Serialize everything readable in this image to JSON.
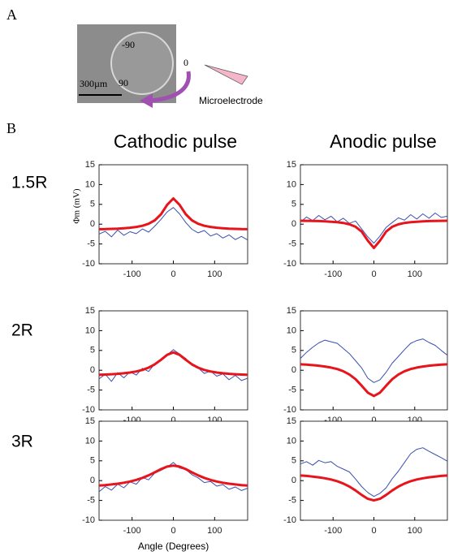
{
  "panel_labels": [
    "A",
    "B"
  ],
  "panel_a": {
    "angle_labels": [
      "-90",
      "0",
      "90"
    ],
    "scale_bar": "300µm",
    "electrode_label": "Microelectrode"
  },
  "column_titles": [
    "Cathodic pulse",
    "Anodic pulse"
  ],
  "row_labels": [
    "1.5R",
    "2R",
    "3R"
  ],
  "chart_data": [
    {
      "type": "line",
      "y_label": "Φm (mV)",
      "x": [
        -180,
        -165,
        -150,
        -135,
        -120,
        -105,
        -90,
        -75,
        -60,
        -45,
        -30,
        -15,
        0,
        15,
        30,
        45,
        60,
        75,
        90,
        105,
        120,
        135,
        150,
        165,
        180
      ],
      "series": [
        {
          "color": "#3a4fb0",
          "width": 1,
          "values": [
            -2.5,
            -1.8,
            -3.2,
            -1.5,
            -2.8,
            -1.9,
            -2.4,
            -1.2,
            -2.0,
            -0.5,
            1.2,
            3.1,
            4.2,
            2.6,
            0.4,
            -1.3,
            -2.2,
            -1.6,
            -3.0,
            -2.4,
            -3.5,
            -2.7,
            -3.9,
            -3.1,
            -4.0
          ]
        },
        {
          "color": "#e8141c",
          "width": 3,
          "values": [
            -1.28,
            -1.24,
            -1.19,
            -1.13,
            -1.03,
            -0.9,
            -0.7,
            -0.4,
            0.1,
            0.96,
            2.5,
            4.9,
            6.5,
            4.9,
            2.5,
            0.96,
            0.1,
            -0.4,
            -0.7,
            -0.9,
            -1.03,
            -1.13,
            -1.19,
            -1.24,
            -1.28
          ]
        }
      ],
      "xlim": [
        -180,
        180
      ],
      "ylim": [
        -10,
        15
      ],
      "xticks": [
        -100,
        0,
        100
      ],
      "yticks": [
        -10,
        -5,
        0,
        5,
        10,
        15
      ]
    },
    {
      "type": "line",
      "x": [
        -180,
        -165,
        -150,
        -135,
        -120,
        -105,
        -90,
        -75,
        -60,
        -45,
        -30,
        -15,
        0,
        15,
        30,
        45,
        60,
        75,
        90,
        105,
        120,
        135,
        150,
        165,
        180
      ],
      "series": [
        {
          "color": "#3a4fb0",
          "width": 1,
          "values": [
            0.5,
            1.8,
            0.9,
            2.2,
            1.1,
            2.0,
            0.6,
            1.5,
            0.2,
            0.8,
            -1.2,
            -3.2,
            -4.8,
            -3.0,
            -0.8,
            0.4,
            1.6,
            1.0,
            2.4,
            1.3,
            2.6,
            1.5,
            2.8,
            1.7,
            2.0
          ]
        },
        {
          "color": "#e8141c",
          "width": 3,
          "values": [
            0.87,
            0.84,
            0.81,
            0.77,
            0.71,
            0.62,
            0.5,
            0.3,
            -0.04,
            -0.65,
            -1.87,
            -4.15,
            -6,
            -4.15,
            -1.87,
            -0.65,
            -0.04,
            0.3,
            0.5,
            0.62,
            0.71,
            0.77,
            0.81,
            0.84,
            0.87
          ]
        }
      ],
      "xlim": [
        -180,
        180
      ],
      "ylim": [
        -10,
        15
      ],
      "xticks": [
        -100,
        0,
        100
      ],
      "yticks": [
        -10,
        -5,
        0,
        5,
        10,
        15
      ]
    },
    {
      "type": "line",
      "x": [
        -180,
        -165,
        -150,
        -135,
        -120,
        -105,
        -90,
        -75,
        -60,
        -45,
        -30,
        -15,
        0,
        15,
        30,
        45,
        60,
        75,
        90,
        105,
        120,
        135,
        150,
        165,
        180
      ],
      "series": [
        {
          "color": "#3a4fb0",
          "width": 1,
          "values": [
            -2.2,
            -1.0,
            -2.8,
            -0.6,
            -1.9,
            -0.4,
            -1.2,
            0.5,
            -0.3,
            1.6,
            2.4,
            3.9,
            5.2,
            4.1,
            3.0,
            1.2,
            0.6,
            -0.8,
            -0.2,
            -1.5,
            -0.9,
            -2.4,
            -1.3,
            -2.6,
            -2.0
          ]
        },
        {
          "color": "#e8141c",
          "width": 3,
          "values": [
            -1.15,
            -1.08,
            -1.0,
            -0.9,
            -0.76,
            -0.57,
            -0.3,
            0.09,
            0.66,
            1.5,
            2.65,
            3.9,
            4.5,
            3.9,
            2.65,
            1.5,
            0.66,
            0.09,
            -0.3,
            -0.57,
            -0.76,
            -0.9,
            -1.0,
            -1.08,
            -1.15
          ]
        }
      ],
      "xlim": [
        -180,
        180
      ],
      "ylim": [
        -10,
        15
      ],
      "xticks": [
        -100,
        0,
        100
      ],
      "yticks": [
        -10,
        -5,
        0,
        5,
        10,
        15
      ]
    },
    {
      "type": "line",
      "x": [
        -180,
        -165,
        -150,
        -135,
        -120,
        -105,
        -90,
        -75,
        -60,
        -45,
        -30,
        -15,
        0,
        15,
        30,
        45,
        60,
        75,
        90,
        105,
        120,
        135,
        150,
        165,
        180
      ],
      "series": [
        {
          "color": "#3a4fb0",
          "width": 1,
          "values": [
            3.0,
            4.5,
            5.8,
            6.9,
            7.6,
            7.2,
            6.8,
            5.5,
            4.2,
            2.4,
            0.6,
            -2.0,
            -3.1,
            -2.4,
            -0.5,
            1.8,
            3.5,
            5.2,
            6.8,
            7.5,
            7.9,
            7.0,
            6.3,
            5.0,
            3.8
          ]
        },
        {
          "color": "#e8141c",
          "width": 3,
          "values": [
            1.5,
            1.41,
            1.3,
            1.15,
            0.95,
            0.68,
            0.3,
            -0.25,
            -1.06,
            -2.25,
            -3.89,
            -5.65,
            -6.5,
            -5.65,
            -3.89,
            -2.25,
            -1.06,
            -0.25,
            0.3,
            0.68,
            0.95,
            1.15,
            1.3,
            1.41,
            1.5
          ]
        }
      ],
      "xlim": [
        -180,
        180
      ],
      "ylim": [
        -10,
        15
      ],
      "xticks": [
        -100,
        0,
        100
      ],
      "yticks": [
        -10,
        -5,
        0,
        5,
        10,
        15
      ]
    },
    {
      "type": "line",
      "x_label": "Angle (Degrees)",
      "x": [
        -180,
        -165,
        -150,
        -135,
        -120,
        -105,
        -90,
        -75,
        -60,
        -45,
        -30,
        -15,
        0,
        15,
        30,
        45,
        60,
        75,
        90,
        105,
        120,
        135,
        150,
        165,
        180
      ],
      "series": [
        {
          "color": "#3a4fb0",
          "width": 1,
          "values": [
            -2.8,
            -1.5,
            -2.4,
            -0.9,
            -1.8,
            -0.3,
            -0.9,
            0.8,
            0.2,
            1.9,
            2.6,
            3.4,
            4.6,
            3.2,
            2.8,
            1.5,
            0.7,
            -0.5,
            -0.2,
            -1.4,
            -1.0,
            -2.2,
            -1.6,
            -2.5,
            -1.9
          ]
        },
        {
          "color": "#e8141c",
          "width": 3,
          "values": [
            -1.24,
            -1.12,
            -0.96,
            -0.77,
            -0.53,
            -0.22,
            0.19,
            0.7,
            1.34,
            2.1,
            2.9,
            3.55,
            3.8,
            3.55,
            2.9,
            2.1,
            1.34,
            0.7,
            0.19,
            -0.22,
            -0.53,
            -0.77,
            -0.96,
            -1.12,
            -1.24
          ]
        }
      ],
      "xlim": [
        -180,
        180
      ],
      "ylim": [
        -10,
        15
      ],
      "xticks": [
        -100,
        0,
        100
      ],
      "yticks": [
        -10,
        -5,
        0,
        5,
        10,
        15
      ]
    },
    {
      "type": "line",
      "x": [
        -180,
        -165,
        -150,
        -135,
        -120,
        -105,
        -90,
        -75,
        -60,
        -45,
        -30,
        -15,
        0,
        15,
        30,
        45,
        60,
        75,
        90,
        105,
        120,
        135,
        150,
        165,
        180
      ],
      "series": [
        {
          "color": "#3a4fb0",
          "width": 1,
          "values": [
            4.2,
            4.8,
            3.9,
            5.1,
            4.5,
            4.8,
            3.6,
            2.9,
            2.2,
            0.4,
            -1.5,
            -3.0,
            -4.0,
            -3.2,
            -1.8,
            0.5,
            2.4,
            4.6,
            6.8,
            7.9,
            8.3,
            7.4,
            6.6,
            5.8,
            4.9
          ]
        },
        {
          "color": "#e8141c",
          "width": 3,
          "values": [
            1.3,
            1.18,
            1.03,
            0.84,
            0.6,
            0.28,
            -0.15,
            -0.73,
            -1.5,
            -2.48,
            -3.6,
            -4.59,
            -5,
            -4.59,
            -3.6,
            -2.48,
            -1.5,
            -0.73,
            -0.15,
            0.28,
            0.6,
            0.84,
            1.03,
            1.18,
            1.3
          ]
        }
      ],
      "xlim": [
        -180,
        180
      ],
      "ylim": [
        -10,
        15
      ],
      "xticks": [
        -100,
        0,
        100
      ],
      "yticks": [
        -10,
        -5,
        0,
        5,
        10,
        15
      ]
    }
  ]
}
